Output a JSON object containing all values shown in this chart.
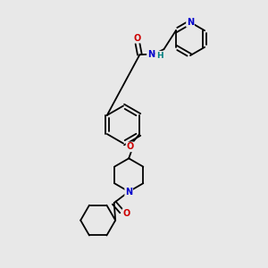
{
  "background_color": "#e8e8e8",
  "atom_colors": {
    "N": "#0000cc",
    "O": "#cc0000",
    "H": "#008080"
  },
  "bond_lw": 1.3,
  "fs": 7.0
}
